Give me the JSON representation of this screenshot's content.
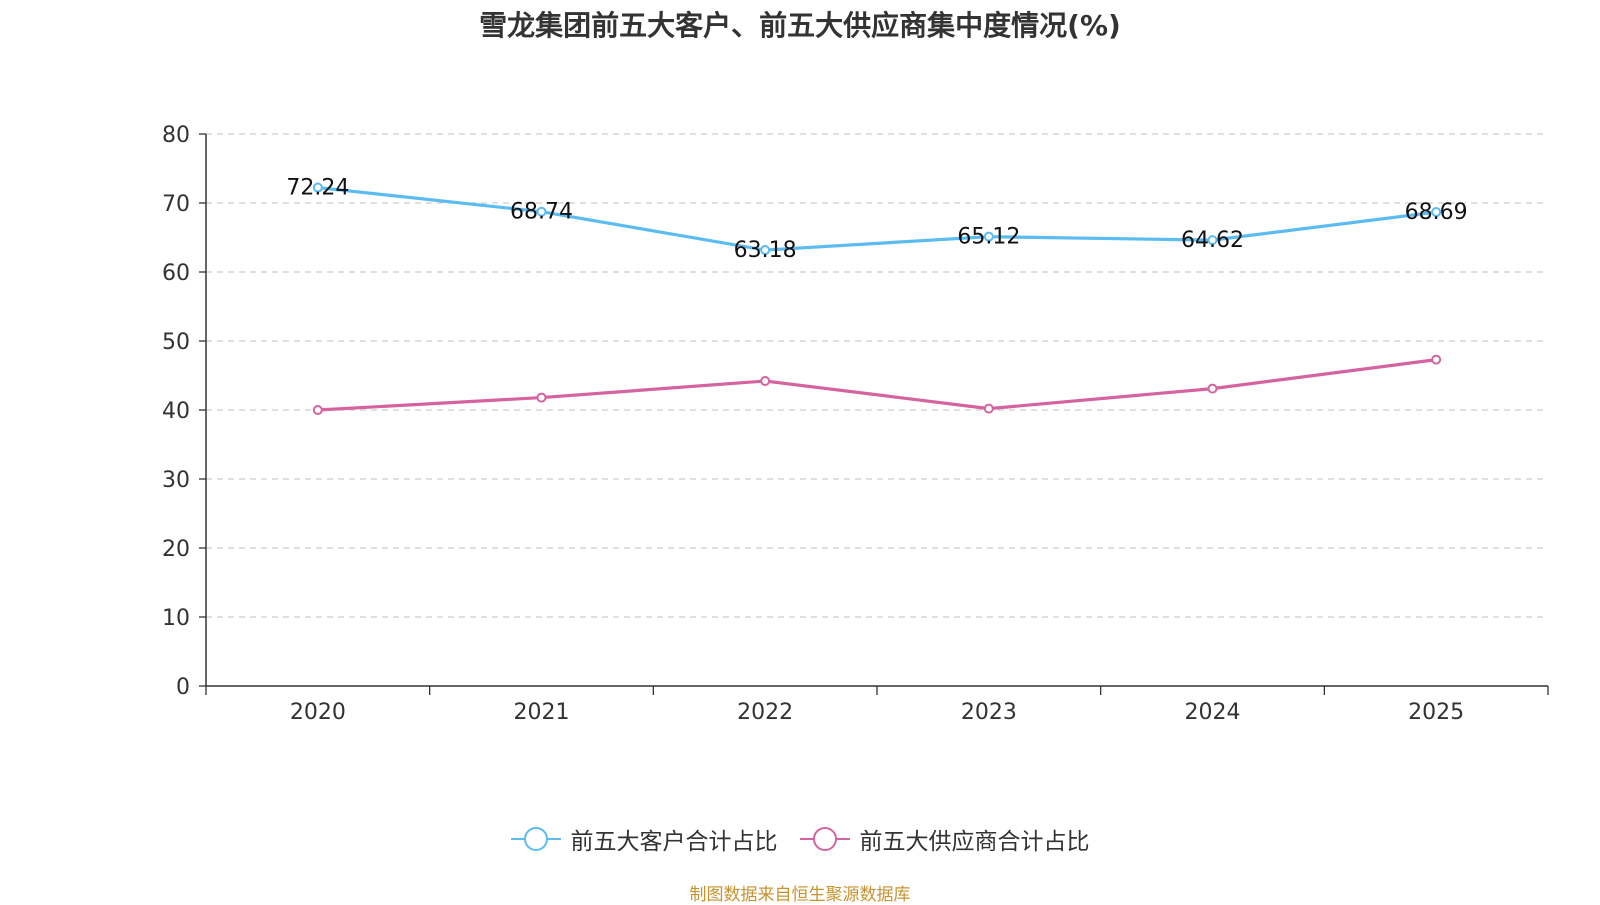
{
  "chart_data": {
    "type": "line",
    "title": "雪龙集团前五大客户、前五大供应商集中度情况(%)",
    "categories": [
      "2020",
      "2021",
      "2022",
      "2023",
      "2024",
      "2025"
    ],
    "ylim": [
      0,
      80
    ],
    "yticks": [
      "0",
      "10",
      "20",
      "30",
      "40",
      "50",
      "60",
      "70",
      "80"
    ],
    "grid": true,
    "legend_position": "bottom-center",
    "series": [
      {
        "name": "前五大客户合计占比",
        "color": "#5bbcf1",
        "values": [
          72.24,
          68.74,
          63.18,
          65.12,
          64.62,
          68.69
        ],
        "labels": [
          "72.24",
          "68.74",
          "63.18",
          "65.12",
          "64.62",
          "68.69"
        ]
      },
      {
        "name": "前五大供应商合计占比",
        "color": "#d4639f",
        "values": [
          40.0,
          41.8,
          44.2,
          40.2,
          43.1,
          47.3
        ]
      }
    ]
  },
  "footer": {
    "source": "制图数据来自恒生聚源数据库",
    "source_color": "#c8932f"
  }
}
